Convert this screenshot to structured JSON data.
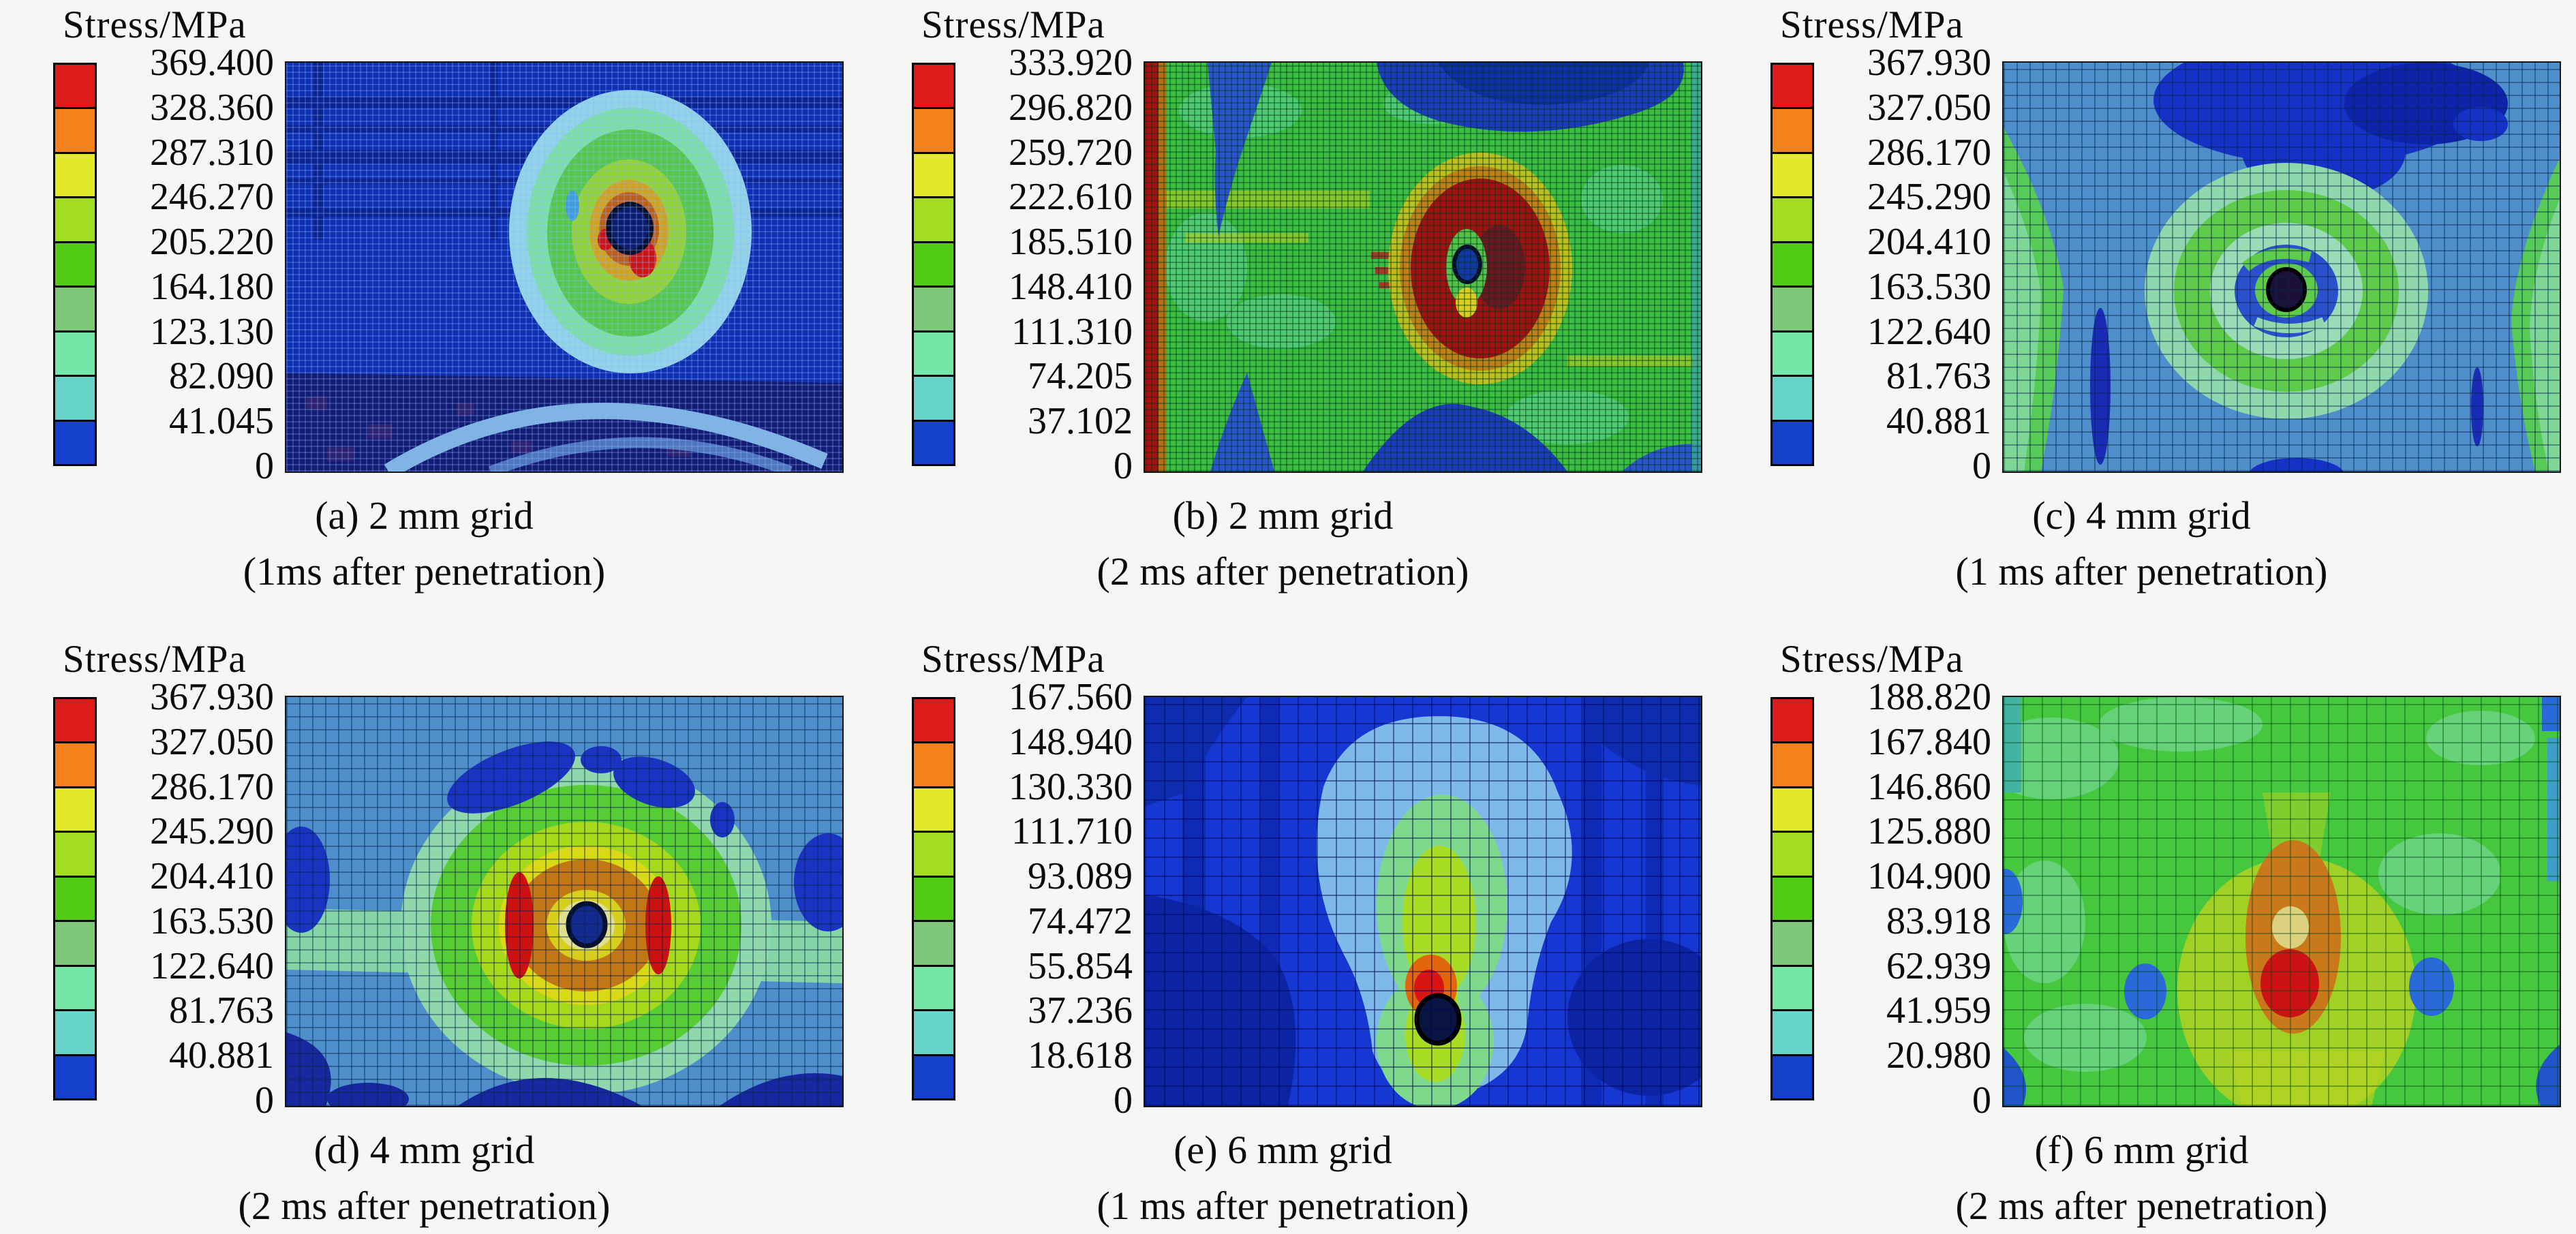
{
  "figure": {
    "background_color": "#f6f6f5",
    "units": "MPa",
    "description_title": "Stress/MPa"
  },
  "colorbar_colors": [
    "#dd1b1b",
    "#f5821d",
    "#e2e928",
    "#a2dd1f",
    "#52cb16",
    "#7cc878",
    "#74e7a8",
    "#66d5c8",
    "#1540cc"
  ],
  "panels": [
    {
      "id": "a",
      "title": "Stress/MPa",
      "ticks": [
        "369.400",
        "328.360",
        "287.310",
        "246.270",
        "205.220",
        "164.180",
        "123.130",
        "82.090",
        "41.045",
        "0"
      ],
      "caption_line1": "(a) 2 mm grid",
      "caption_line2": "(1ms after penetration)"
    },
    {
      "id": "b",
      "title": "Stress/MPa",
      "ticks": [
        "333.920",
        "296.820",
        "259.720",
        "222.610",
        "185.510",
        "148.410",
        "111.310",
        "74.205",
        "37.102",
        "0"
      ],
      "caption_line1": "(b) 2 mm grid",
      "caption_line2": "(2 ms after penetration)"
    },
    {
      "id": "c",
      "title": "Stress/MPa",
      "ticks": [
        "367.930",
        "327.050",
        "286.170",
        "245.290",
        "204.410",
        "163.530",
        "122.640",
        "81.763",
        "40.881",
        "0"
      ],
      "caption_line1": "(c) 4 mm grid",
      "caption_line2": "(1 ms after penetration)"
    },
    {
      "id": "d",
      "title": "Stress/MPa",
      "ticks": [
        "367.930",
        "327.050",
        "286.170",
        "245.290",
        "204.410",
        "163.530",
        "122.640",
        "81.763",
        "40.881",
        "0"
      ],
      "caption_line1": "(d) 4 mm grid",
      "caption_line2": "(2 ms after penetration)"
    },
    {
      "id": "e",
      "title": "Stress/MPa",
      "ticks": [
        "167.560",
        "148.940",
        "130.330",
        "111.710",
        "93.089",
        "74.472",
        "55.854",
        "37.236",
        "18.618",
        "0"
      ],
      "caption_line1": "(e) 6 mm grid",
      "caption_line2": "(1 ms after penetration)"
    },
    {
      "id": "f",
      "title": "Stress/MPa",
      "ticks": [
        "188.820",
        "167.840",
        "146.860",
        "125.880",
        "104.900",
        "83.918",
        "62.939",
        "41.959",
        "20.980",
        "0"
      ],
      "caption_line1": "(f) 6 mm grid",
      "caption_line2": "(2 ms after penetration)"
    }
  ],
  "chart_data": [
    {
      "type": "heatmap",
      "panel": "a",
      "title": "Stress/MPa",
      "grid_size_mm": 2,
      "time_after_penetration_ms": 1,
      "contour_levels_mpa": [
        0,
        41.045,
        82.09,
        123.13,
        164.18,
        205.22,
        246.27,
        287.31,
        328.36,
        369.4
      ],
      "max_stress_mpa": 369.4,
      "legend_position": "left",
      "caption": "(a) 2 mm grid (1ms after penetration)",
      "pattern": "dark blue field; concentric green/yellow/orange rings around penetration hole upper-right of center; light blue arc near bottom"
    },
    {
      "type": "heatmap",
      "panel": "b",
      "title": "Stress/MPa",
      "grid_size_mm": 2,
      "time_after_penetration_ms": 2,
      "contour_levels_mpa": [
        0,
        37.102,
        74.205,
        111.31,
        148.41,
        185.51,
        222.61,
        259.72,
        296.82,
        333.92
      ],
      "max_stress_mpa": 333.92,
      "legend_position": "left",
      "caption": "(b) 2 mm grid (2 ms after penetration)",
      "pattern": "green field; dark red zone around hole right of center; red band on left edge; blue wedges at top and bottom edges"
    },
    {
      "type": "heatmap",
      "panel": "c",
      "title": "Stress/MPa",
      "grid_size_mm": 4,
      "time_after_penetration_ms": 1,
      "contour_levels_mpa": [
        0,
        40.881,
        81.763,
        122.64,
        163.53,
        204.41,
        245.29,
        286.17,
        327.05,
        367.93
      ],
      "max_stress_mpa": 367.93,
      "legend_position": "left",
      "caption": "(c) 4 mm grid (1 ms after penetration)",
      "pattern": "steel-blue field; dark blue blob top center; green/mint concentric rings around central hole; green wedges on side edges"
    },
    {
      "type": "heatmap",
      "panel": "d",
      "title": "Stress/MPa",
      "grid_size_mm": 4,
      "time_after_penetration_ms": 2,
      "contour_levels_mpa": [
        0,
        40.881,
        81.763,
        122.64,
        163.53,
        204.41,
        245.29,
        286.17,
        327.05,
        367.93
      ],
      "max_stress_mpa": 367.93,
      "legend_position": "left",
      "caption": "(d) 4 mm grid (2 ms after penetration)",
      "pattern": "steel-blue field; large green/yellow/orange target with red crescents around central hole; navy blobs at corners"
    },
    {
      "type": "heatmap",
      "panel": "e",
      "title": "Stress/MPa",
      "grid_size_mm": 6,
      "time_after_penetration_ms": 1,
      "contour_levels_mpa": [
        0,
        18.618,
        37.236,
        55.854,
        74.472,
        93.089,
        111.71,
        130.33,
        148.94,
        167.56
      ],
      "max_stress_mpa": 167.56,
      "legend_position": "left",
      "caption": "(e) 6 mm grid (1 ms after penetration)",
      "pattern": "dark blue field; light-blue mushroom region; vertical green dumbbell through center; small red/orange spot above hole"
    },
    {
      "type": "heatmap",
      "panel": "f",
      "title": "Stress/MPa",
      "grid_size_mm": 6,
      "time_after_penetration_ms": 2,
      "contour_levels_mpa": [
        0,
        20.98,
        41.959,
        62.939,
        83.918,
        104.9,
        125.88,
        146.86,
        167.84,
        188.82
      ],
      "max_stress_mpa": 188.82,
      "legend_position": "left",
      "caption": "(f) 6 mm grid (2 ms after penetration)",
      "pattern": "green field; vertical orange capsule with red core at center; yellow halo; small blue spots left and right"
    }
  ]
}
